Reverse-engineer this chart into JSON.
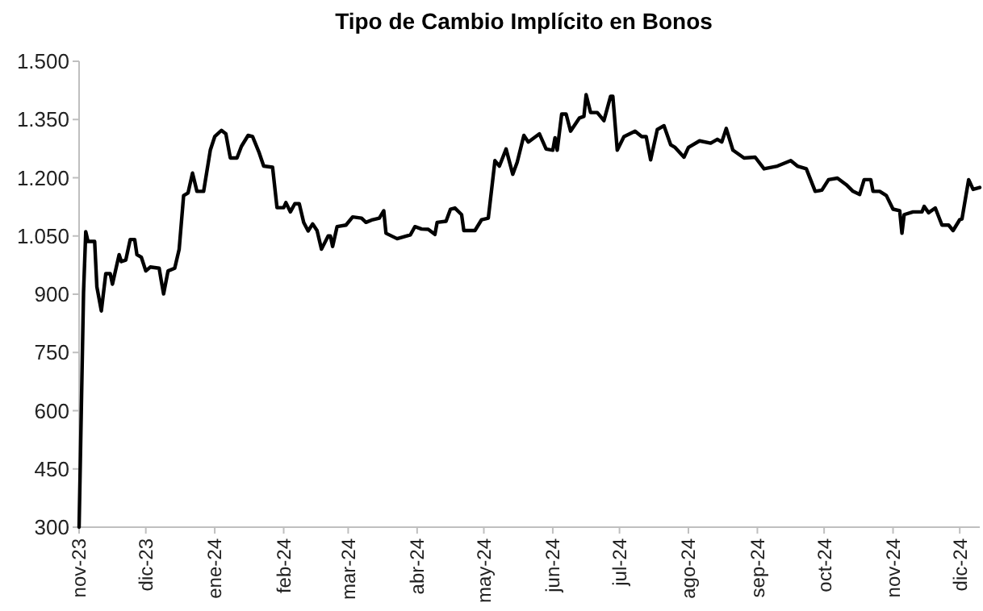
{
  "chart_data": {
    "type": "line",
    "title": "Tipo de Cambio Implícito en Bonos",
    "x": [
      "2023-11-01",
      "2023-11-03",
      "2023-11-04",
      "2023-11-05",
      "2023-11-08",
      "2023-11-09",
      "2023-11-11",
      "2023-11-13",
      "2023-11-15",
      "2023-11-16",
      "2023-11-19",
      "2023-11-20",
      "2023-11-22",
      "2023-11-24",
      "2023-11-26",
      "2023-11-27",
      "2023-11-29",
      "2023-12-01",
      "2023-12-03",
      "2023-12-07",
      "2023-12-08",
      "2023-12-09",
      "2023-12-11",
      "2023-12-14",
      "2023-12-16",
      "2023-12-18",
      "2023-12-20",
      "2023-12-22",
      "2023-12-24",
      "2023-12-27",
      "2023-12-30",
      "2024-01-01",
      "2024-01-04",
      "2024-01-06",
      "2024-01-08",
      "2024-01-11",
      "2024-01-13",
      "2024-01-16",
      "2024-01-18",
      "2024-01-21",
      "2024-01-23",
      "2024-01-27",
      "2024-01-29",
      "2024-02-01",
      "2024-02-02",
      "2024-02-04",
      "2024-02-06",
      "2024-02-08",
      "2024-02-10",
      "2024-02-12",
      "2024-02-14",
      "2024-02-16",
      "2024-02-18",
      "2024-02-21",
      "2024-02-22",
      "2024-02-23",
      "2024-02-25",
      "2024-02-29",
      "2024-03-03",
      "2024-03-07",
      "2024-03-09",
      "2024-03-12",
      "2024-03-15",
      "2024-03-17",
      "2024-03-18",
      "2024-03-23",
      "2024-03-29",
      "2024-03-31",
      "2024-04-03",
      "2024-04-06",
      "2024-04-09",
      "2024-04-10",
      "2024-04-14",
      "2024-04-16",
      "2024-04-18",
      "2024-04-21",
      "2024-04-22",
      "2024-04-27",
      "2024-04-30",
      "2024-05-03",
      "2024-05-06",
      "2024-05-08",
      "2024-05-11",
      "2024-05-14",
      "2024-05-16",
      "2024-05-19",
      "2024-05-21",
      "2024-05-26",
      "2024-05-29",
      "2024-06-01",
      "2024-06-02",
      "2024-06-03",
      "2024-06-05",
      "2024-06-07",
      "2024-06-09",
      "2024-06-13",
      "2024-06-15",
      "2024-06-16",
      "2024-06-18",
      "2024-06-21",
      "2024-06-24",
      "2024-06-27",
      "2024-06-28",
      "2024-06-30",
      "2024-07-03",
      "2024-07-08",
      "2024-07-11",
      "2024-07-13",
      "2024-07-15",
      "2024-07-18",
      "2024-07-21",
      "2024-07-24",
      "2024-07-26",
      "2024-07-30",
      "2024-08-01",
      "2024-08-06",
      "2024-08-11",
      "2024-08-14",
      "2024-08-16",
      "2024-08-18",
      "2024-08-21",
      "2024-08-26",
      "2024-08-31",
      "2024-09-04",
      "2024-09-10",
      "2024-09-16",
      "2024-09-19",
      "2024-09-23",
      "2024-09-27",
      "2024-09-30",
      "2024-10-03",
      "2024-10-07",
      "2024-10-11",
      "2024-10-14",
      "2024-10-17",
      "2024-10-19",
      "2024-10-22",
      "2024-10-23",
      "2024-10-26",
      "2024-10-29",
      "2024-11-01",
      "2024-11-04",
      "2024-11-05",
      "2024-11-06",
      "2024-11-10",
      "2024-11-14",
      "2024-11-15",
      "2024-11-17",
      "2024-11-20",
      "2024-11-23",
      "2024-11-26",
      "2024-11-28",
      "2024-12-01",
      "2024-12-02",
      "2024-12-05",
      "2024-12-07",
      "2024-12-10"
    ],
    "series": [
      {
        "color": "#000000",
        "values": [
          300,
          905,
          1061,
          1036,
          1036,
          919,
          857,
          953,
          953,
          926,
          1002,
          984,
          988,
          1041,
          1041,
          1002,
          995,
          960,
          970,
          967,
          933,
          901,
          960,
          967,
          1016,
          1154,
          1161,
          1212,
          1165,
          1165,
          1271,
          1306,
          1322,
          1313,
          1251,
          1251,
          1281,
          1309,
          1306,
          1264,
          1230,
          1227,
          1123,
          1123,
          1136,
          1112,
          1133,
          1133,
          1085,
          1063,
          1081,
          1064,
          1016,
          1050,
          1050,
          1023,
          1074,
          1078,
          1099,
          1096,
          1085,
          1092,
          1096,
          1115,
          1057,
          1043,
          1053,
          1074,
          1068,
          1067,
          1054,
          1085,
          1088,
          1119,
          1122,
          1105,
          1064,
          1064,
          1092,
          1096,
          1244,
          1230,
          1274,
          1209,
          1240,
          1309,
          1292,
          1313,
          1274,
          1271,
          1303,
          1271,
          1364,
          1364,
          1320,
          1354,
          1358,
          1414,
          1368,
          1368,
          1347,
          1410,
          1410,
          1271,
          1306,
          1320,
          1306,
          1306,
          1246,
          1324,
          1334,
          1285,
          1278,
          1253,
          1278,
          1295,
          1289,
          1299,
          1292,
          1327,
          1271,
          1251,
          1253,
          1223,
          1230,
          1244,
          1230,
          1223,
          1165,
          1168,
          1195,
          1199,
          1182,
          1165,
          1157,
          1195,
          1195,
          1165,
          1165,
          1154,
          1119,
          1115,
          1057,
          1105,
          1112,
          1112,
          1126,
          1110,
          1122,
          1078,
          1078,
          1064,
          1092,
          1094,
          1195,
          1170,
          1175
        ]
      }
    ],
    "xlim": [
      "2023-11-01",
      "2024-12-10"
    ],
    "xticks": [
      {
        "value": "2023-11-01",
        "label": "nov-23"
      },
      {
        "value": "2023-12-01",
        "label": "dic-23"
      },
      {
        "value": "2024-01-01",
        "label": "ene-24"
      },
      {
        "value": "2024-02-01",
        "label": "feb-24"
      },
      {
        "value": "2024-03-01",
        "label": "mar-24"
      },
      {
        "value": "2024-04-01",
        "label": "abr-24"
      },
      {
        "value": "2024-05-01",
        "label": "may-24"
      },
      {
        "value": "2024-06-01",
        "label": "jun-24"
      },
      {
        "value": "2024-07-01",
        "label": "jul-24"
      },
      {
        "value": "2024-08-01",
        "label": "ago-24"
      },
      {
        "value": "2024-09-01",
        "label": "sep-24"
      },
      {
        "value": "2024-10-01",
        "label": "oct-24"
      },
      {
        "value": "2024-11-01",
        "label": "nov-24"
      },
      {
        "value": "2024-12-01",
        "label": "dic-24"
      }
    ],
    "ylim": [
      300,
      1500
    ],
    "yticks": [
      300,
      450,
      600,
      750,
      900,
      {
        "value": 1050,
        "label": "1.050"
      },
      {
        "value": 1200,
        "label": "1.200"
      },
      {
        "value": 1350,
        "label": "1.350"
      },
      {
        "value": 1500,
        "label": "1.500"
      }
    ],
    "grid": false,
    "marker": "none",
    "line_style": "solid"
  }
}
